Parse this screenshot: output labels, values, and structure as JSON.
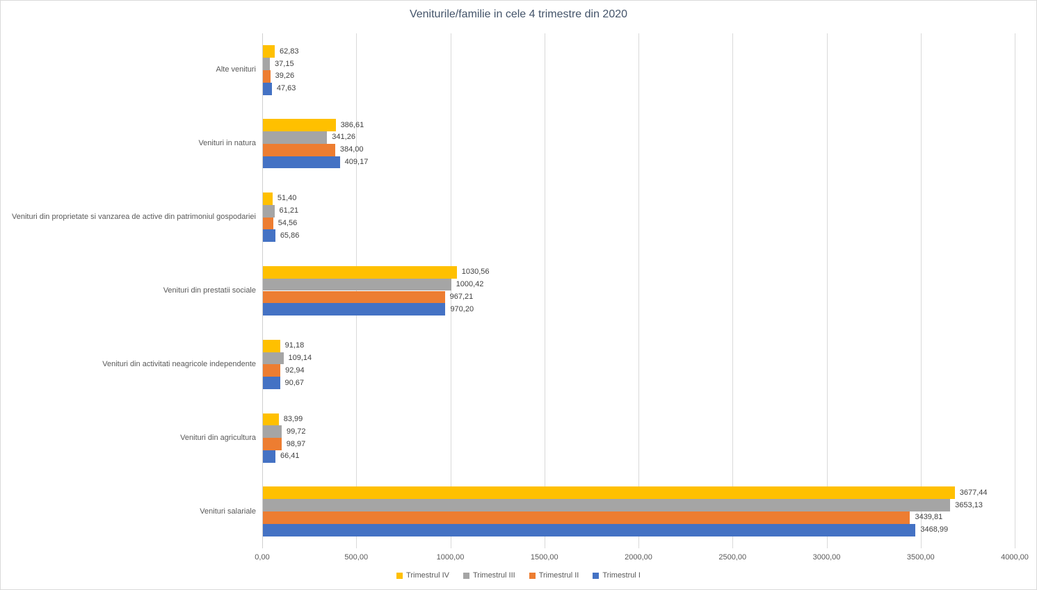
{
  "chart_data": {
    "type": "bar",
    "orientation": "horizontal",
    "title": "Veniturile/familie in cele 4 trimestre din 2020",
    "categories": [
      "Alte venituri",
      "Venituri in natura",
      "Venituri din proprietate si vanzarea de active din patrimoniul gospodariei",
      "Venituri din prestatii sociale",
      "Venituri din activitati neagricole independente",
      "Venituri din agricultura",
      "Venituri salariale"
    ],
    "series": [
      {
        "name": "Trimestrul IV",
        "color": "#FFC000",
        "values": [
          62.83,
          386.61,
          51.4,
          1030.56,
          91.18,
          83.99,
          3677.44
        ],
        "labels": [
          "62,83",
          "386,61",
          "51,40",
          "1030,56",
          "91,18",
          "83,99",
          "3677,44"
        ]
      },
      {
        "name": "Trimestrul III",
        "color": "#A5A5A5",
        "values": [
          37.15,
          341.26,
          61.21,
          1000.42,
          109.14,
          99.72,
          3653.13
        ],
        "labels": [
          "37,15",
          "341,26",
          "61,21",
          "1000,42",
          "109,14",
          "99,72",
          "3653,13"
        ]
      },
      {
        "name": "Trimestrul II",
        "color": "#ED7D31",
        "values": [
          39.26,
          384.0,
          54.56,
          967.21,
          92.94,
          98.97,
          3439.81
        ],
        "labels": [
          "39,26",
          "384,00",
          "54,56",
          "967,21",
          "92,94",
          "98,97",
          "3439,81"
        ]
      },
      {
        "name": "Trimestrul I",
        "color": "#4472C4",
        "values": [
          47.63,
          409.17,
          65.86,
          970.2,
          90.67,
          66.41,
          3468.99
        ],
        "labels": [
          "47,63",
          "409,17",
          "65,86",
          "970,20",
          "90,67",
          "66,41",
          "3468,99"
        ]
      }
    ],
    "x_axis": {
      "min": 0,
      "max": 4000,
      "step": 500,
      "tick_labels": [
        "0,00",
        "500,00",
        "1000,00",
        "1500,00",
        "2000,00",
        "2500,00",
        "3000,00",
        "3500,00",
        "4000,00"
      ]
    },
    "legend": {
      "position": "bottom",
      "entries": [
        "Trimestrul IV",
        "Trimestrul III",
        "Trimestrul II",
        "Trimestrul I"
      ]
    },
    "grid": "vertical-on",
    "colors": {
      "title_text": "#44546A",
      "axis_text": "#595959",
      "data_label_text": "#404040",
      "gridline": "#D9D9D9"
    }
  }
}
